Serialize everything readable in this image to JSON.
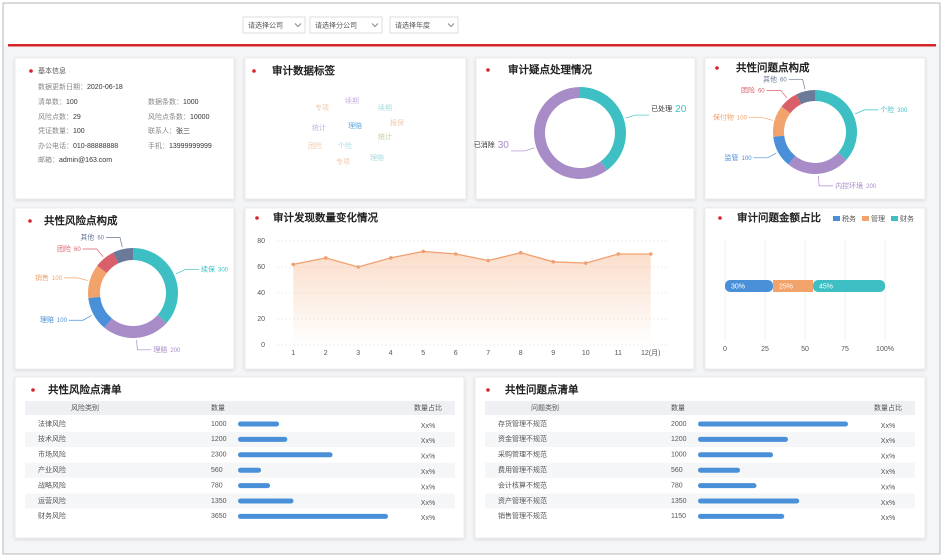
{
  "filters": [
    "请选择公司",
    "请选择分公司",
    "请选择年度"
  ],
  "basic_info": {
    "title": "基本信息",
    "fields": [
      {
        "label": "数据更新日期：",
        "value": "2020-06-18"
      },
      {
        "label": "清单数：",
        "value": 100
      },
      {
        "label": "数据条数：",
        "value": 1000
      },
      {
        "label": "风险点数：",
        "value": 29
      },
      {
        "label": "风险点条数：",
        "value": 10000
      },
      {
        "label": "凭证数量：",
        "value": 100
      },
      {
        "label": "联系人：",
        "value": "张三"
      },
      {
        "label": "办公电话：",
        "value": "010-88888888"
      },
      {
        "label": "手机：",
        "value": "13999999999"
      },
      {
        "label": "邮箱：",
        "value": "admin@163.com"
      }
    ]
  },
  "word_cloud": {
    "title": "审计数据标签",
    "words": [
      {
        "text": "专项",
        "color": "#f4c8a8"
      },
      {
        "text": "续期",
        "color": "#c5b4de"
      },
      {
        "text": "续期",
        "color": "#a8dbe0"
      },
      {
        "text": "统计",
        "color": "#c5b4de"
      },
      {
        "text": "理赔",
        "color": "#5fa8df"
      },
      {
        "text": "报保",
        "color": "#f4c8a8"
      },
      {
        "text": "团险",
        "color": "#f4c8a8"
      },
      {
        "text": "个险",
        "color": "#a8dbe0"
      },
      {
        "text": "统计",
        "color": "#b9d6a8"
      },
      {
        "text": "理赔",
        "color": "#a8dbe0"
      },
      {
        "text": "专项",
        "color": "#f4c8a8"
      }
    ]
  },
  "chart_data": [
    {
      "type": "pie",
      "donut": true,
      "title": "审计疑点处理情况",
      "categories": [
        "已处理",
        "已消除"
      ],
      "values": [
        20,
        30
      ],
      "colors": [
        "#3dbfc4",
        "#a88cc8"
      ]
    },
    {
      "type": "pie",
      "donut": true,
      "title": "共性问题点构成",
      "categories": [
        "个险",
        "内控环境",
        "监管",
        "保付物",
        "团险",
        "其他"
      ],
      "values": [
        300,
        200,
        100,
        100,
        60,
        60
      ],
      "colors": [
        "#3dbfc4",
        "#a88cc8",
        "#4a90d9",
        "#f2a36b",
        "#d9606b",
        "#6b7a99"
      ]
    },
    {
      "type": "pie",
      "donut": true,
      "title": "共性风险点构成",
      "categories": [
        "续保",
        "理赔",
        "理赔",
        "销售",
        "团险",
        "其他"
      ],
      "values": [
        300,
        200,
        100,
        100,
        60,
        60
      ],
      "colors": [
        "#3dbfc4",
        "#a88cc8",
        "#4a90d9",
        "#f2a36b",
        "#d9606b",
        "#6b7a99"
      ]
    },
    {
      "type": "line",
      "title": "审计发现数量变化情况",
      "categories": [
        "1",
        "2",
        "3",
        "4",
        "5",
        "6",
        "7",
        "8",
        "9",
        "10",
        "11",
        "12(月)"
      ],
      "values": [
        62,
        67,
        60,
        67,
        72,
        70,
        65,
        71,
        64,
        63,
        70,
        70
      ],
      "color": "#f0a070",
      "ylim": [
        0,
        80
      ],
      "yticks": [
        0,
        20,
        40,
        60,
        80
      ],
      "grid": true
    },
    {
      "type": "bar",
      "orientation": "horizontal",
      "stacked": true,
      "title": "审计问题金额占比",
      "series": [
        {
          "name": "税务",
          "color": "#4a90d9",
          "values": [
            30
          ],
          "value_labels": [
            "30%"
          ]
        },
        {
          "name": "管理",
          "color": "#f2a36b",
          "values": [
            25
          ],
          "value_labels": [
            "25%"
          ]
        },
        {
          "name": "财务",
          "color": "#3dbfc4",
          "values": [
            45
          ],
          "value_labels": [
            "45%"
          ]
        }
      ],
      "xlim": [
        0,
        100
      ],
      "xticks": [
        0,
        25,
        50,
        75,
        {
          "value": 100,
          "label": "100%"
        }
      ],
      "grid": true,
      "legend": "top-right"
    }
  ],
  "tables": [
    {
      "title": "共性风险点清单",
      "columns": [
        "风险类别",
        "数量",
        "数量占比"
      ],
      "bar_color": "#4a90d9",
      "rows": [
        {
          "name": "法律风险",
          "count": 1000,
          "ratio": "Xx%"
        },
        {
          "name": "技术风险",
          "count": 1200,
          "ratio": "Xx%"
        },
        {
          "name": "市场风险",
          "count": 2300,
          "ratio": "Xx%"
        },
        {
          "name": "产业风险",
          "count": 560,
          "ratio": "Xx%"
        },
        {
          "name": "战略风险",
          "count": 780,
          "ratio": "Xx%"
        },
        {
          "name": "运营风险",
          "count": 1350,
          "ratio": "Xx%"
        },
        {
          "name": "财务风险",
          "count": 3650,
          "ratio": "Xx%"
        }
      ]
    },
    {
      "title": "共性问题点清单",
      "columns": [
        "问题类别",
        "数量",
        "数量占比"
      ],
      "bar_color": "#4a90d9",
      "rows": [
        {
          "name": "存货管理不规范",
          "count": 2000,
          "ratio": "Xx%"
        },
        {
          "name": "资金管理不规范",
          "count": 1200,
          "ratio": "Xx%"
        },
        {
          "name": "采购管理不规范",
          "count": 1000,
          "ratio": "Xx%"
        },
        {
          "name": "费用管理不规范",
          "count": 560,
          "ratio": "Xx%"
        },
        {
          "name": "会计核算不规范",
          "count": 780,
          "ratio": "Xx%"
        },
        {
          "name": "资产管理不规范",
          "count": 1350,
          "ratio": "Xx%"
        },
        {
          "name": "销售管理不规范",
          "count": 1150,
          "ratio": "Xx%"
        }
      ]
    }
  ]
}
